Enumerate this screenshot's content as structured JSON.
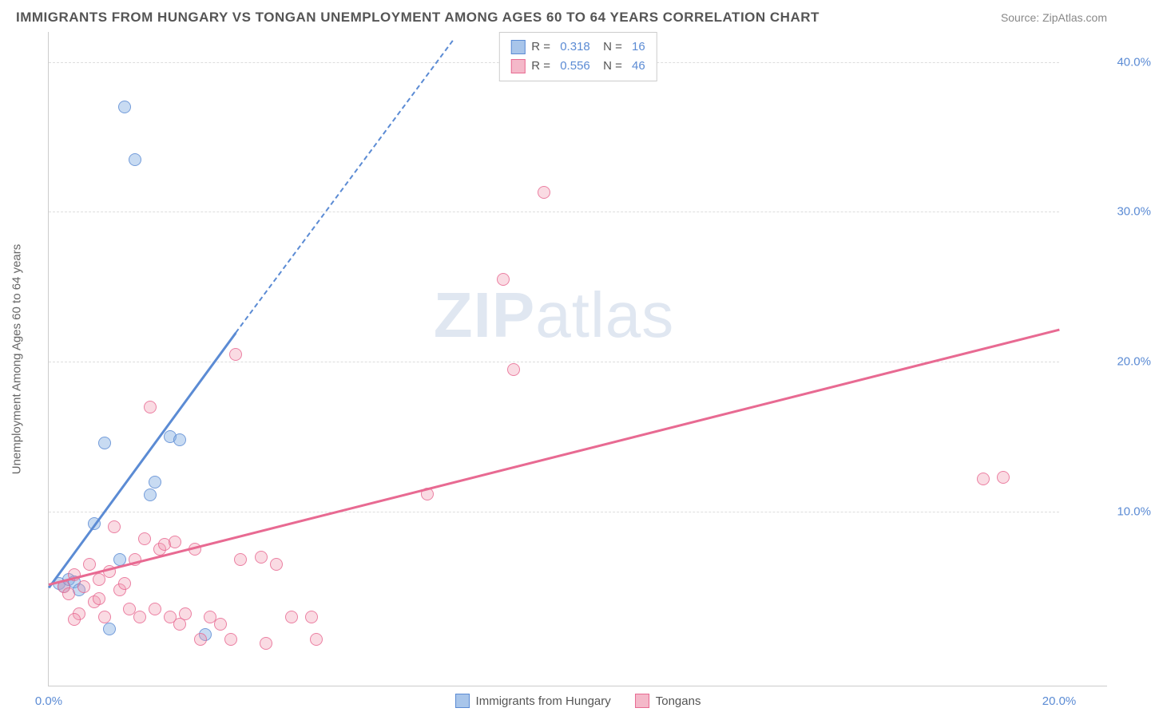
{
  "header": {
    "title": "IMMIGRANTS FROM HUNGARY VS TONGAN UNEMPLOYMENT AMONG AGES 60 TO 64 YEARS CORRELATION CHART",
    "source": "Source: ZipAtlas.com"
  },
  "chart": {
    "type": "scatter",
    "ylabel": "Unemployment Among Ages 60 to 64 years",
    "watermark_a": "ZIP",
    "watermark_b": "atlas",
    "xlim": [
      0,
      20
    ],
    "ylim": [
      0,
      42
    ],
    "xticks": [
      {
        "v": 0,
        "label": "0.0%"
      },
      {
        "v": 20,
        "label": "20.0%"
      }
    ],
    "yticks": [
      {
        "v": 10,
        "label": "10.0%"
      },
      {
        "v": 20,
        "label": "20.0%"
      },
      {
        "v": 30,
        "label": "30.0%"
      },
      {
        "v": 40,
        "label": "40.0%"
      }
    ],
    "series": [
      {
        "name": "Immigrants from Hungary",
        "fill": "#a8c5ea",
        "stroke": "#5b8bd4",
        "R": "0.318",
        "N": "16",
        "trend": {
          "x0": 0,
          "y0": 5,
          "x1": 3.7,
          "y1": 22,
          "solid_until_x": 3.7,
          "dash_to_x": 8.0,
          "dash_to_y": 41.5
        },
        "points": [
          [
            0.2,
            5.2
          ],
          [
            0.3,
            5.0
          ],
          [
            0.4,
            5.5
          ],
          [
            0.5,
            5.3
          ],
          [
            0.6,
            4.8
          ],
          [
            0.9,
            9.2
          ],
          [
            1.1,
            14.6
          ],
          [
            1.4,
            6.8
          ],
          [
            1.5,
            37.0
          ],
          [
            1.7,
            33.5
          ],
          [
            2.0,
            11.1
          ],
          [
            2.1,
            12.0
          ],
          [
            2.4,
            15.0
          ],
          [
            2.6,
            14.8
          ],
          [
            3.1,
            1.8
          ],
          [
            1.2,
            2.2
          ]
        ]
      },
      {
        "name": "Tongans",
        "fill": "#f4b8c9",
        "stroke": "#e86a92",
        "R": "0.556",
        "N": "46",
        "trend": {
          "x0": 0,
          "y0": 5.2,
          "x1": 20,
          "y1": 22.2
        },
        "points": [
          [
            0.3,
            5.0
          ],
          [
            0.4,
            4.5
          ],
          [
            0.5,
            5.8
          ],
          [
            0.6,
            3.2
          ],
          [
            0.7,
            5.0
          ],
          [
            0.8,
            6.5
          ],
          [
            0.9,
            4.0
          ],
          [
            1.0,
            5.5
          ],
          [
            1.1,
            3.0
          ],
          [
            1.2,
            6.0
          ],
          [
            1.3,
            9.0
          ],
          [
            1.4,
            4.8
          ],
          [
            1.5,
            5.2
          ],
          [
            1.6,
            3.5
          ],
          [
            1.7,
            6.8
          ],
          [
            1.8,
            3.0
          ],
          [
            1.9,
            8.2
          ],
          [
            2.0,
            17.0
          ],
          [
            2.1,
            3.5
          ],
          [
            2.2,
            7.5
          ],
          [
            2.3,
            7.8
          ],
          [
            2.4,
            3.0
          ],
          [
            2.5,
            8.0
          ],
          [
            2.6,
            2.5
          ],
          [
            2.7,
            3.2
          ],
          [
            2.9,
            7.5
          ],
          [
            3.0,
            1.5
          ],
          [
            3.2,
            3.0
          ],
          [
            3.4,
            2.5
          ],
          [
            3.6,
            1.5
          ],
          [
            3.7,
            20.5
          ],
          [
            3.8,
            6.8
          ],
          [
            4.2,
            7.0
          ],
          [
            4.3,
            1.2
          ],
          [
            4.5,
            6.5
          ],
          [
            4.8,
            3.0
          ],
          [
            5.2,
            3.0
          ],
          [
            5.3,
            1.5
          ],
          [
            7.5,
            11.2
          ],
          [
            9.0,
            25.5
          ],
          [
            9.2,
            19.5
          ],
          [
            9.8,
            31.3
          ],
          [
            18.5,
            12.2
          ],
          [
            18.9,
            12.3
          ],
          [
            0.5,
            2.8
          ],
          [
            1.0,
            4.2
          ]
        ]
      }
    ],
    "colors": {
      "text": "#555555",
      "muted": "#888888",
      "tick": "#5b8bd4",
      "grid": "#dddddd",
      "axis": "#cccccc"
    }
  }
}
